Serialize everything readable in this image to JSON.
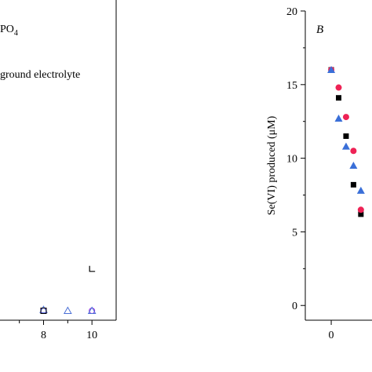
{
  "chart_data": [
    {
      "type": "scatter",
      "panel_label": "",
      "legend_fragments": [
        "PO",
        "4",
        "ground electrolyte"
      ],
      "xlabel": "",
      "ylabel": "",
      "x_tick_labels": [
        "8",
        "10"
      ],
      "x_visible_range": [
        6.2,
        11.0
      ],
      "series": [
        {
          "marker": "circle-open",
          "color": "#8a2be2",
          "points": [
            {
              "x": 8,
              "y": 0.25
            },
            {
              "x": 10,
              "y": 0.25
            }
          ]
        },
        {
          "marker": "triangle-open",
          "color": "#4a6fd6",
          "points": [
            {
              "x": 8,
              "y": 0.3
            },
            {
              "x": 9,
              "y": 0.25
            },
            {
              "x": 10,
              "y": 0.25
            }
          ]
        },
        {
          "marker": "square-open",
          "color": "#000000",
          "points": [
            {
              "x": 8,
              "y": 0.25
            }
          ]
        },
        {
          "marker": "corner",
          "color": "#000000",
          "points": [
            {
              "x": 10,
              "y": 2.4
            }
          ]
        }
      ]
    },
    {
      "type": "scatter",
      "panel_label": "B",
      "xlabel": "",
      "ylabel": "Se(VI) produced (μM)",
      "ylim": [
        -1,
        20
      ],
      "y_ticks": [
        0,
        5,
        10,
        15,
        20
      ],
      "y_tick_labels": [
        "0",
        "5",
        "10",
        "15",
        "20"
      ],
      "x_tick_labels": [
        "0"
      ],
      "x_visible_range": [
        -0.7,
        1.1
      ],
      "series": [
        {
          "marker": "square",
          "color": "#000000",
          "points": [
            {
              "x": 0,
              "y": 16.0
            },
            {
              "x": 0.2,
              "y": 14.1
            },
            {
              "x": 0.4,
              "y": 11.5
            },
            {
              "x": 0.6,
              "y": 8.2
            },
            {
              "x": 0.8,
              "y": 6.2
            }
          ]
        },
        {
          "marker": "circle",
          "color": "#ee2255",
          "points": [
            {
              "x": 0,
              "y": 16.0
            },
            {
              "x": 0.2,
              "y": 14.8
            },
            {
              "x": 0.4,
              "y": 12.8
            },
            {
              "x": 0.6,
              "y": 10.5
            },
            {
              "x": 0.8,
              "y": 6.5
            }
          ]
        },
        {
          "marker": "triangle",
          "color": "#3a6fd8",
          "points": [
            {
              "x": 0,
              "y": 16.0
            },
            {
              "x": 0.2,
              "y": 12.7
            },
            {
              "x": 0.4,
              "y": 10.8
            },
            {
              "x": 0.6,
              "y": 9.5
            },
            {
              "x": 0.8,
              "y": 7.8
            }
          ]
        }
      ]
    }
  ]
}
